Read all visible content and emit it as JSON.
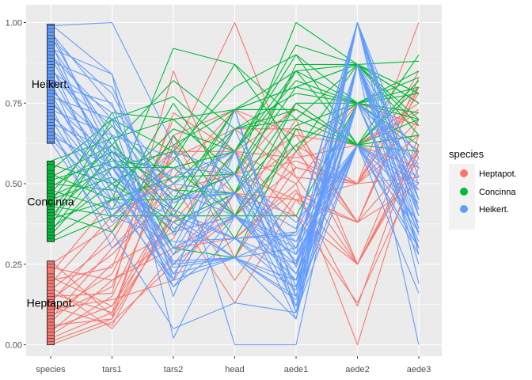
{
  "chart_data": {
    "type": "parallel-coordinates",
    "title": "",
    "xlabel": "",
    "ylabel": "",
    "ylim": [
      0,
      1
    ],
    "y_ticks": [
      "0.00",
      "0.25",
      "0.50",
      "0.75",
      "1.00"
    ],
    "y_tick_values": [
      0,
      0.25,
      0.5,
      0.75,
      1
    ],
    "axes": [
      "species",
      "tars1",
      "tars2",
      "head",
      "aede1",
      "aede2",
      "aede3"
    ],
    "legend": {
      "title": "species",
      "entries": [
        {
          "name": "Heptapot.",
          "color": "#F8766D"
        },
        {
          "name": "Concinna",
          "color": "#00BA38"
        },
        {
          "name": "Heikert.",
          "color": "#619CFF"
        }
      ]
    },
    "species_blocks": [
      {
        "name": "Heptapot.",
        "color": "#F8766D",
        "range": [
          0,
          0.26
        ],
        "label_y": 0.13
      },
      {
        "name": "Concinna",
        "color": "#00BA38",
        "range": [
          0.32,
          0.57
        ],
        "label_y": 0.445
      },
      {
        "name": "Heikert.",
        "color": "#619CFF",
        "range": [
          0.625,
          0.995
        ],
        "label_y": 0.81
      }
    ],
    "series": [
      {
        "group": "Heptapot.",
        "lines": [
          [
            0.0,
            0.07,
            0.25,
            0.4,
            0.55,
            0.5,
            0.65
          ],
          [
            0.01,
            0.08,
            0.4,
            0.27,
            0.6,
            0.38,
            0.8
          ],
          [
            0.02,
            0.1,
            0.62,
            0.47,
            0.45,
            0.25,
            0.7
          ],
          [
            0.03,
            0.15,
            0.55,
            0.6,
            0.4,
            0.13,
            0.55
          ],
          [
            0.04,
            0.2,
            0.3,
            0.33,
            0.5,
            0.75,
            0.6
          ],
          [
            0.05,
            0.12,
            0.45,
            0.53,
            0.65,
            0.62,
            0.75
          ],
          [
            0.06,
            0.08,
            0.65,
            0.73,
            0.55,
            0.5,
            0.85
          ],
          [
            0.07,
            0.25,
            0.35,
            0.4,
            0.7,
            0.25,
            0.62
          ],
          [
            0.08,
            0.3,
            0.5,
            0.2,
            0.47,
            0.38,
            0.5
          ],
          [
            0.09,
            0.18,
            0.72,
            0.6,
            0.58,
            0.62,
            0.72
          ],
          [
            0.1,
            0.22,
            0.6,
            1.0,
            0.52,
            0.5,
            1.0
          ],
          [
            0.11,
            0.14,
            0.2,
            0.47,
            0.62,
            0.25,
            0.6
          ],
          [
            0.12,
            0.06,
            0.42,
            0.13,
            0.45,
            0.5,
            0.7
          ],
          [
            0.13,
            0.35,
            0.58,
            0.67,
            0.67,
            0.38,
            0.8
          ],
          [
            0.14,
            0.28,
            0.48,
            0.53,
            0.75,
            0.62,
            0.55
          ],
          [
            0.15,
            0.16,
            0.85,
            0.4,
            0.6,
            0.75,
            0.68
          ],
          [
            0.16,
            0.1,
            0.38,
            0.6,
            0.5,
            0.0,
            0.62
          ],
          [
            0.17,
            0.32,
            0.65,
            0.27,
            0.55,
            0.5,
            0.78
          ],
          [
            0.18,
            0.05,
            0.28,
            0.47,
            0.4,
            0.25,
            0.6
          ],
          [
            0.19,
            0.4,
            0.52,
            0.73,
            0.65,
            0.38,
            0.83
          ],
          [
            0.2,
            0.24,
            0.7,
            0.53,
            0.57,
            0.5,
            0.52
          ],
          [
            0.21,
            0.12,
            0.4,
            0.33,
            0.48,
            0.12,
            0.65
          ],
          [
            0.22,
            0.45,
            0.6,
            0.6,
            0.73,
            0.62,
            0.73
          ],
          [
            0.24,
            0.2,
            0.33,
            0.67,
            0.52,
            0.25,
            0.58
          ],
          [
            0.25,
            0.37,
            0.55,
            0.4,
            0.62,
            0.5,
            0.8
          ],
          [
            0.26,
            0.09,
            0.45,
            0.53,
            0.45,
            0.38,
            0.6
          ]
        ]
      },
      {
        "group": "Concinna",
        "lines": [
          [
            0.32,
            0.4,
            0.4,
            0.4,
            0.4,
            0.75,
            0.8
          ],
          [
            0.33,
            0.45,
            0.92,
            0.87,
            0.6,
            0.87,
            0.88
          ],
          [
            0.34,
            0.55,
            0.55,
            0.6,
            0.85,
            0.62,
            0.65
          ],
          [
            0.35,
            0.6,
            0.48,
            0.47,
            0.75,
            0.75,
            0.62
          ],
          [
            0.36,
            0.5,
            0.62,
            0.73,
            0.8,
            0.87,
            0.7
          ],
          [
            0.37,
            0.65,
            0.3,
            0.27,
            0.67,
            0.62,
            0.82
          ],
          [
            0.38,
            0.7,
            0.77,
            0.6,
            0.9,
            0.75,
            0.78
          ],
          [
            0.39,
            0.45,
            0.52,
            0.53,
            1.0,
            0.87,
            0.65
          ],
          [
            0.4,
            0.58,
            0.4,
            0.67,
            0.73,
            0.62,
            0.9
          ],
          [
            0.41,
            0.35,
            0.65,
            0.4,
            0.62,
            0.75,
            0.72
          ],
          [
            0.42,
            0.62,
            0.45,
            0.73,
            0.85,
            0.87,
            0.75
          ],
          [
            0.43,
            0.4,
            0.57,
            0.87,
            0.7,
            0.62,
            0.6
          ],
          [
            0.44,
            0.72,
            0.7,
            0.53,
            0.8,
            0.75,
            0.85
          ],
          [
            0.45,
            0.52,
            0.35,
            0.6,
            0.93,
            0.87,
            0.68
          ],
          [
            0.46,
            0.55,
            0.6,
            0.33,
            0.67,
            0.62,
            0.8
          ],
          [
            0.47,
            0.68,
            0.5,
            0.67,
            0.78,
            0.75,
            0.72
          ],
          [
            0.48,
            0.42,
            0.75,
            0.47,
            0.87,
            0.87,
            0.78
          ],
          [
            0.49,
            0.6,
            0.42,
            0.73,
            0.73,
            0.62,
            0.65
          ],
          [
            0.5,
            0.48,
            0.67,
            0.6,
            0.82,
            0.75,
            0.83
          ],
          [
            0.51,
            0.57,
            0.55,
            0.4,
            0.75,
            0.62,
            0.7
          ],
          [
            0.52,
            0.62,
            0.82,
            0.67,
            0.7,
            0.87,
            0.75
          ],
          [
            0.53,
            0.45,
            0.45,
            0.53,
            0.85,
            0.75,
            0.6
          ],
          [
            0.54,
            0.7,
            0.6,
            0.8,
            0.9,
            0.62,
            0.82
          ],
          [
            0.56,
            0.5,
            0.38,
            0.47,
            0.68,
            0.75,
            0.7
          ],
          [
            0.57,
            0.64,
            0.7,
            0.73,
            0.8,
            0.87,
            0.78
          ]
        ]
      },
      {
        "group": "Heikert.",
        "lines": [
          [
            0.63,
            0.35,
            0.05,
            0.13,
            0.1,
            0.62,
            0.3
          ],
          [
            0.64,
            0.45,
            0.2,
            0.27,
            0.15,
            0.87,
            0.4
          ],
          [
            0.65,
            0.55,
            0.35,
            0.4,
            0.2,
            1.0,
            0.45
          ],
          [
            0.66,
            0.4,
            0.6,
            0.53,
            0.25,
            0.75,
            0.35
          ],
          [
            0.67,
            0.5,
            0.25,
            0.27,
            0.3,
            0.62,
            0.5
          ],
          [
            0.68,
            0.3,
            0.45,
            0.47,
            0.08,
            0.87,
            0.25
          ],
          [
            0.69,
            0.6,
            0.18,
            0.33,
            0.35,
            0.75,
            0.55
          ],
          [
            0.7,
            0.42,
            0.5,
            0.6,
            0.12,
            1.0,
            0.4
          ],
          [
            0.71,
            0.55,
            0.3,
            0.4,
            0.28,
            0.62,
            0.3
          ],
          [
            0.72,
            0.48,
            0.4,
            0.27,
            0.18,
            0.87,
            0.45
          ],
          [
            0.73,
            0.65,
            0.22,
            0.47,
            0.32,
            0.75,
            0.35
          ],
          [
            0.74,
            0.38,
            0.55,
            0.53,
            0.15,
            1.0,
            0.52
          ],
          [
            0.75,
            0.58,
            0.28,
            0.4,
            0.25,
            0.62,
            0.28
          ],
          [
            0.76,
            0.52,
            0.42,
            0.33,
            0.2,
            0.87,
            0.42
          ],
          [
            0.77,
            0.7,
            0.15,
            0.6,
            0.1,
            0.75,
            0.6
          ],
          [
            0.78,
            0.45,
            0.38,
            0.27,
            0.35,
            1.0,
            0.36
          ],
          [
            0.79,
            0.62,
            0.25,
            0.47,
            0.22,
            0.62,
            0.48
          ],
          [
            0.8,
            0.55,
            0.48,
            0.4,
            0.3,
            0.87,
            0.3
          ],
          [
            0.81,
            0.75,
            0.2,
            0.73,
            0.15,
            0.75,
            0.55
          ],
          [
            0.82,
            0.4,
            0.32,
            0.33,
            0.25,
            1.0,
            0.4
          ],
          [
            0.83,
            0.68,
            0.44,
            0.53,
            0.38,
            0.62,
            0.35
          ],
          [
            0.84,
            0.5,
            0.22,
            0.27,
            0.2,
            0.87,
            0.5
          ],
          [
            0.85,
            0.72,
            0.36,
            0.47,
            0.12,
            0.75,
            0.32
          ],
          [
            0.86,
            0.6,
            0.52,
            0.6,
            0.28,
            1.0,
            0.45
          ],
          [
            0.87,
            0.47,
            0.18,
            0.4,
            0.32,
            0.62,
            0.38
          ],
          [
            0.88,
            0.8,
            0.4,
            0.33,
            0.17,
            0.87,
            0.58
          ],
          [
            0.89,
            0.58,
            0.3,
            0.67,
            0.24,
            0.75,
            0.3
          ],
          [
            0.9,
            0.7,
            0.46,
            0.47,
            0.36,
            1.0,
            0.42
          ],
          [
            0.91,
            0.55,
            0.26,
            0.27,
            0.14,
            0.62,
            0.52
          ],
          [
            0.92,
            0.84,
            0.34,
            0.53,
            0.3,
            0.87,
            0.36
          ],
          [
            0.93,
            0.65,
            0.58,
            0.4,
            0.22,
            0.75,
            0.48
          ],
          [
            0.94,
            0.52,
            0.2,
            0.73,
            0.1,
            1.0,
            0.28
          ],
          [
            0.95,
            0.78,
            0.42,
            0.33,
            0.34,
            0.62,
            0.44
          ],
          [
            0.96,
            0.62,
            0.28,
            0.6,
            0.18,
            0.87,
            0.34
          ],
          [
            0.97,
            0.74,
            0.5,
            0.47,
            0.26,
            0.75,
            0.56
          ],
          [
            0.98,
            0.58,
            0.24,
            0.27,
            0.08,
            1.0,
            0.19
          ],
          [
            0.99,
            1.0,
            0.62,
            0.0,
            0.0,
            0.87,
            0.0
          ],
          [
            0.995,
            0.84,
            0.02,
            0.4,
            0.2,
            0.62,
            0.16
          ]
        ]
      }
    ]
  }
}
